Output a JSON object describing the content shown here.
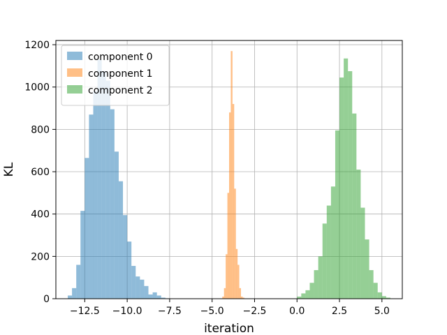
{
  "chart_data": {
    "type": "bar",
    "title": "",
    "xlabel": "iteration",
    "ylabel": "KL",
    "xlim": [
      -14.2,
      6.2
    ],
    "ylim": [
      0,
      1220
    ],
    "xticks": [
      -12.5,
      -10.0,
      -7.5,
      -5.0,
      -2.5,
      0.0,
      2.5,
      5.0
    ],
    "xtick_labels": [
      "−12.5",
      "−10.0",
      "−7.5",
      "−5.0",
      "−2.5",
      "0.0",
      "2.5",
      "5.0"
    ],
    "yticks": [
      0,
      200,
      400,
      600,
      800,
      1000,
      1200
    ],
    "ytick_labels": [
      "0",
      "200",
      "400",
      "600",
      "800",
      "1000",
      "1200"
    ],
    "grid": true,
    "legend_position": "top-left",
    "series": [
      {
        "name": "component 0",
        "color": "#1f77b4",
        "bin_edges": [
          -13.5,
          -13.25,
          -13.0,
          -12.75,
          -12.5,
          -12.25,
          -12.0,
          -11.75,
          -11.5,
          -11.25,
          -11.0,
          -10.75,
          -10.5,
          -10.25,
          -10.0,
          -9.75,
          -9.5,
          -9.25,
          -9.0,
          -8.75,
          -8.5,
          -8.25,
          -8.0,
          -7.75,
          -7.5,
          -7.25,
          -7.0
        ],
        "counts": [
          15,
          50,
          160,
          415,
          665,
          870,
          980,
          1130,
          1075,
          1030,
          895,
          695,
          555,
          395,
          270,
          155,
          105,
          90,
          60,
          20,
          30,
          15,
          5,
          2,
          1,
          0
        ]
      },
      {
        "name": "component 1",
        "color": "#ff7f0e",
        "bin_edges": [
          -4.4,
          -4.3,
          -4.2,
          -4.1,
          -4.0,
          -3.9,
          -3.8,
          -3.7,
          -3.6,
          -3.5,
          -3.4,
          -3.3,
          -3.2,
          -3.1
        ],
        "counts": [
          10,
          50,
          210,
          500,
          880,
          1170,
          920,
          520,
          235,
          160,
          50,
          10,
          5
        ]
      },
      {
        "name": "component 2",
        "color": "#2ca02c",
        "bin_edges": [
          0.0,
          0.25,
          0.5,
          0.75,
          1.0,
          1.25,
          1.5,
          1.75,
          2.0,
          2.25,
          2.5,
          2.75,
          3.0,
          3.25,
          3.5,
          3.75,
          4.0,
          4.25,
          4.5,
          4.75,
          5.0,
          5.25,
          5.5
        ],
        "counts": [
          10,
          25,
          40,
          75,
          135,
          200,
          355,
          440,
          530,
          795,
          1045,
          1135,
          1075,
          875,
          610,
          430,
          280,
          135,
          75,
          30,
          12,
          5
        ]
      }
    ]
  }
}
